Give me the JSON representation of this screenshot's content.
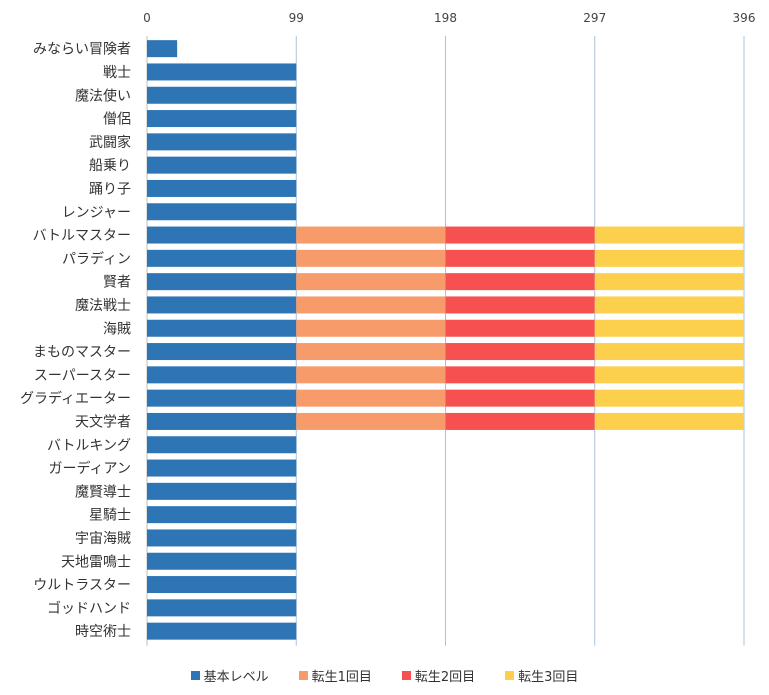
{
  "chart_data": {
    "type": "bar",
    "orientation": "horizontal",
    "stacked": true,
    "title": "",
    "xlabel": "",
    "ylabel": "",
    "xlim": [
      0,
      396
    ],
    "x_ticks": [
      "0",
      "99",
      "198",
      "297",
      "396"
    ],
    "grid": "vertical",
    "legend_position": "bottom",
    "categories": [
      "みならい冒険者",
      "戦士",
      "魔法使い",
      "僧侶",
      "武闘家",
      "船乗り",
      "踊り子",
      "レンジャー",
      "バトルマスター",
      "パラディン",
      "賢者",
      "魔法戦士",
      "海賊",
      "まものマスター",
      "スーパースター",
      "グラディエーター",
      "天文学者",
      "バトルキング",
      "ガーディアン",
      "魔賢導士",
      "星騎士",
      "宇宙海賊",
      "天地雷鳴士",
      "ウルトラスター",
      "ゴッドハンド",
      "時空術士"
    ],
    "series": [
      {
        "name": "基本レベル",
        "color": "#2e75b6",
        "values": [
          20,
          99,
          99,
          99,
          99,
          99,
          99,
          99,
          99,
          99,
          99,
          99,
          99,
          99,
          99,
          99,
          99,
          99,
          99,
          99,
          99,
          99,
          99,
          99,
          99,
          99
        ]
      },
      {
        "name": "転生1回目",
        "color": "#f79b6a",
        "values": [
          0,
          0,
          0,
          0,
          0,
          0,
          0,
          0,
          99,
          99,
          99,
          99,
          99,
          99,
          99,
          99,
          99,
          0,
          0,
          0,
          0,
          0,
          0,
          0,
          0,
          0
        ]
      },
      {
        "name": "転生2回目",
        "color": "#f75050",
        "values": [
          0,
          0,
          0,
          0,
          0,
          0,
          0,
          0,
          99,
          99,
          99,
          99,
          99,
          99,
          99,
          99,
          99,
          0,
          0,
          0,
          0,
          0,
          0,
          0,
          0,
          0
        ]
      },
      {
        "name": "転生3回目",
        "color": "#fcd04c",
        "values": [
          0,
          0,
          0,
          0,
          0,
          0,
          0,
          0,
          99,
          99,
          99,
          99,
          99,
          99,
          99,
          99,
          99,
          0,
          0,
          0,
          0,
          0,
          0,
          0,
          0,
          0
        ]
      }
    ],
    "axis_color": "#bfbfbf",
    "grid_color": "#a9c4da"
  }
}
